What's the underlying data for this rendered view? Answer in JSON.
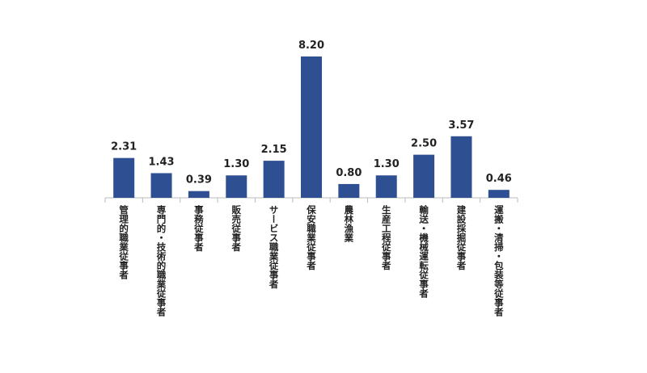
{
  "chart_data": {
    "type": "bar",
    "categories": [
      "管理的職業従事者",
      "専門的・技術的職業従事者",
      "事務従事者",
      "販売従事者",
      "サービス職業従事者",
      "保安職業従事者",
      "農林漁業",
      "生産工程従事者",
      "輸送・機械運転従事者",
      "建設採掘従事者",
      "運搬・清掃・包装等従事者"
    ],
    "values": [
      2.31,
      1.43,
      0.39,
      1.3,
      2.15,
      8.2,
      0.8,
      1.3,
      2.5,
      3.57,
      0.46
    ],
    "value_labels": [
      "2.31",
      "1.43",
      "0.39",
      "1.30",
      "2.15",
      "8.20",
      "0.80",
      "1.30",
      "2.50",
      "3.57",
      "0.46"
    ],
    "color": "#2f4f93"
  }
}
